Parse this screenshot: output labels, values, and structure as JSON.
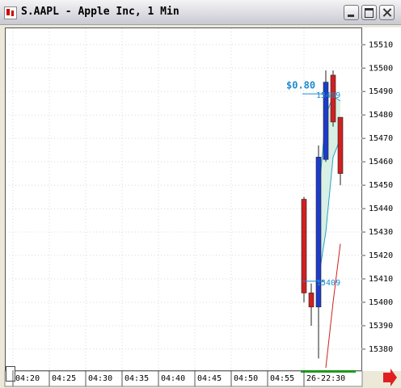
{
  "window_title": "S.AAPL - Apple Inc, 1 Min",
  "chart_data": {
    "type": "candlestick",
    "x": [
      40,
      41,
      42,
      43,
      44,
      45
    ],
    "open": [
      15444,
      15404,
      15398,
      15461,
      15497,
      15479
    ],
    "high": [
      15445,
      15408,
      15467,
      15499,
      15499,
      15479
    ],
    "low": [
      15400,
      15390,
      15376,
      15460,
      15475,
      15450
    ],
    "close": [
      15404,
      15398,
      15462,
      15494,
      15477,
      15455
    ],
    "up_color": "#1e3cc8",
    "down_color": "#d02020",
    "xlim": [
      -1,
      48
    ],
    "xticks": [
      {
        "value": 0,
        "label": "04:20"
      },
      {
        "value": 5,
        "label": "04:25"
      },
      {
        "value": 10,
        "label": "04:30"
      },
      {
        "value": 15,
        "label": "04:35"
      },
      {
        "value": 20,
        "label": "04:40"
      },
      {
        "value": 25,
        "label": "04:45"
      },
      {
        "value": 30,
        "label": "04:50"
      },
      {
        "value": 35,
        "label": "04:55"
      },
      {
        "value": 40,
        "label": "26-22:30"
      }
    ],
    "ylim": [
      15371,
      15517
    ],
    "yticks": [
      15380,
      15390,
      15400,
      15410,
      15420,
      15430,
      15440,
      15450,
      15460,
      15470,
      15480,
      15490,
      15500,
      15510
    ],
    "grid": true,
    "bands": {
      "x": [
        42,
        43,
        44,
        45
      ],
      "upper": [
        15445,
        15480,
        15488,
        15486
      ],
      "lower": [
        15410,
        15430,
        15462,
        15470
      ],
      "color": "#2aa0c8",
      "fill": "#cfeedd"
    },
    "trend": {
      "x": [
        43,
        44,
        45
      ],
      "values": [
        15372,
        15400,
        15425
      ],
      "color": "#d02020"
    },
    "change_label": "$0.80",
    "markers": [
      15489,
      15409
    ],
    "marker_color": "#1e8ad0"
  }
}
